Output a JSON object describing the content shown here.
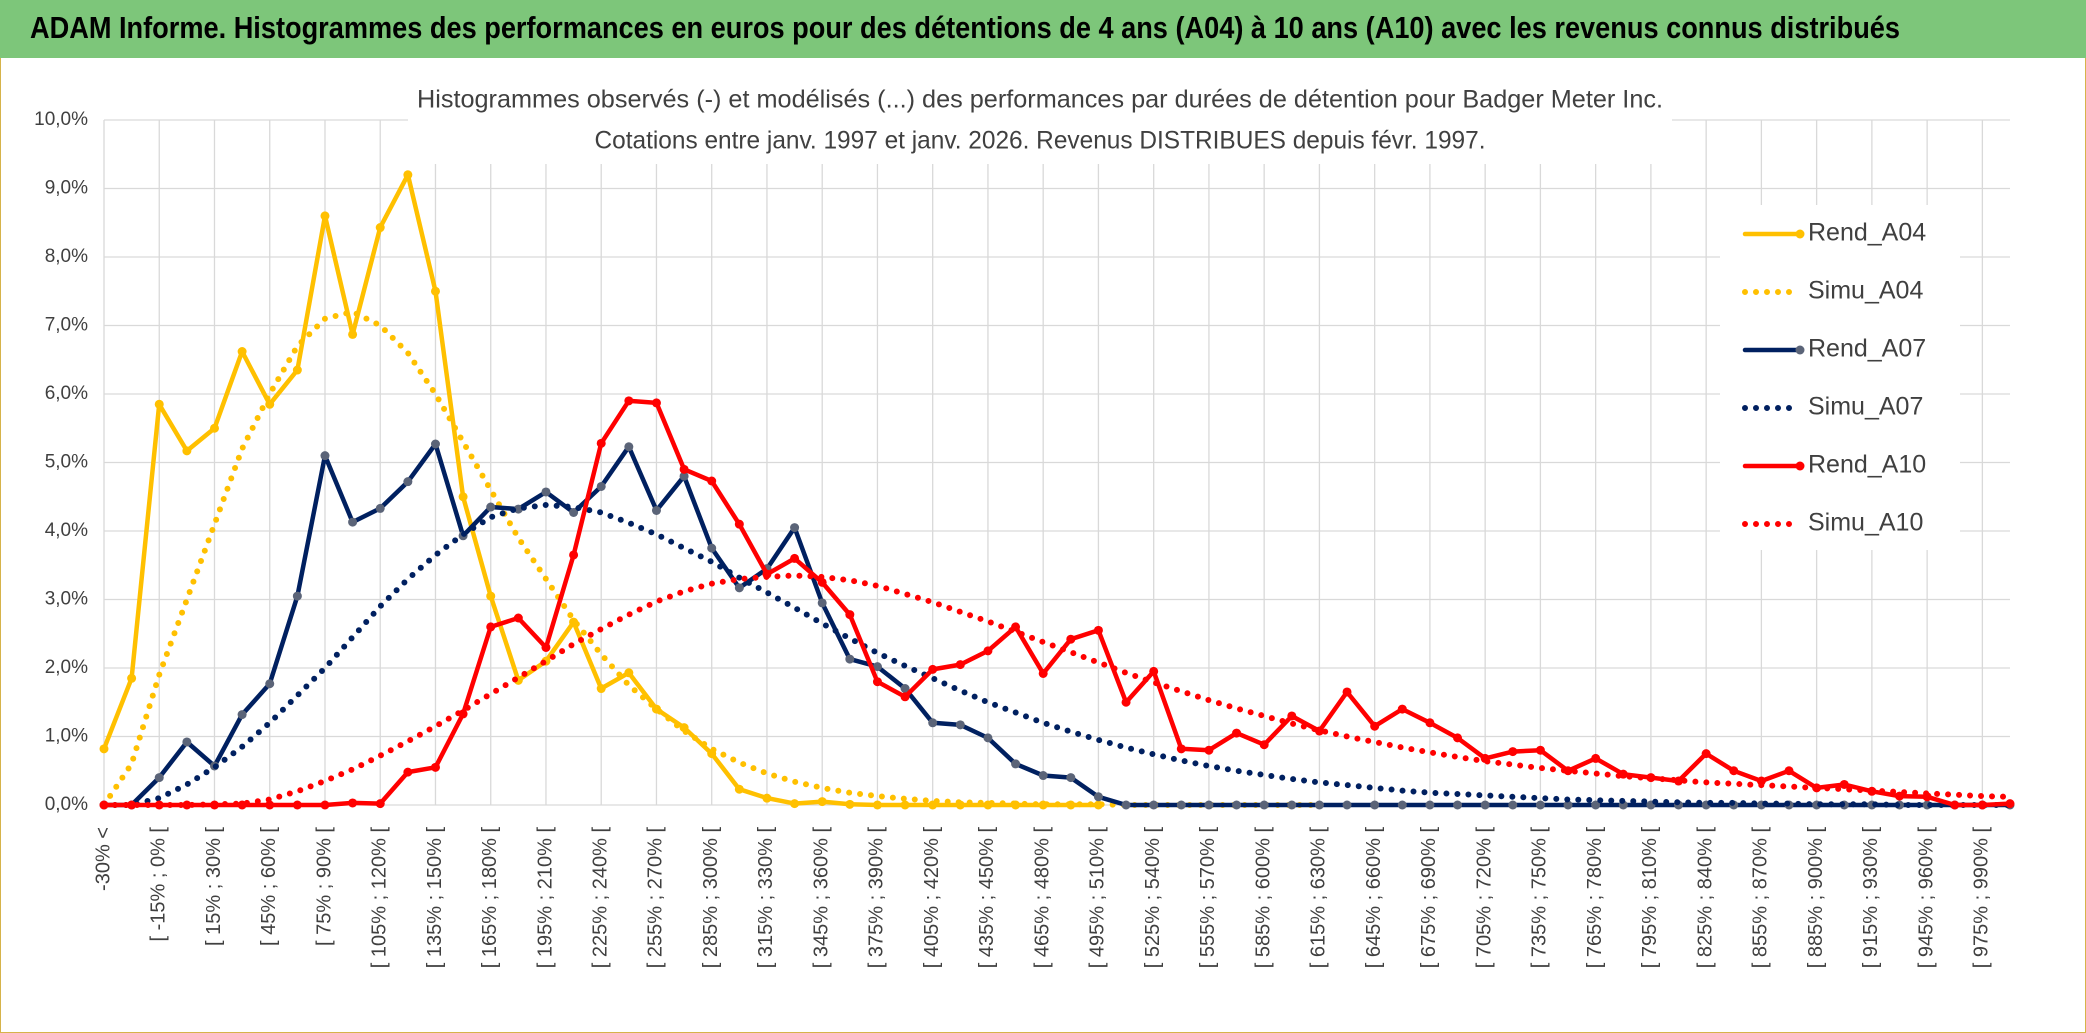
{
  "header": {
    "title": "ADAM Informe. Histogrammes des performances en euros pour des détentions de 4 ans (A04) à 10 ans (A10) avec les revenus connus distribués"
  },
  "chart_data": {
    "type": "line",
    "title": "Histogrammes observés (-) et modélisés (...) des performances par durées de détention pour Badger Meter Inc.",
    "subtitle": "Cotations entre janv. 1997 et janv. 2026. Revenus DISTRIBUES depuis févr. 1997.",
    "categories": [
      "-30% <",
      null,
      "[ -15% ; 0% [",
      null,
      "[ 15% ; 30% [",
      null,
      "[ 45% ; 60% [",
      null,
      "[ 75% ; 90% [",
      null,
      "[ 105% ; 120% [",
      null,
      "[ 135% ; 150% [",
      null,
      "[ 165% ; 180% [",
      null,
      "[ 195% ; 210% [",
      null,
      "[ 225% ; 240% [",
      null,
      "[ 255% ; 270% [",
      null,
      "[ 285% ; 300% [",
      null,
      "[ 315% ; 330% [",
      null,
      "[ 345% ; 360% [",
      null,
      "[ 375% ; 390% [",
      null,
      "[ 405% ; 420% [",
      null,
      "[ 435% ; 450% [",
      null,
      "[ 465% ; 480% [",
      null,
      "[ 495% ; 510% [",
      null,
      "[ 525% ; 540% [",
      null,
      "[ 555% ; 570% [",
      null,
      "[ 585% ; 600% [",
      null,
      "[ 615% ; 630% [",
      null,
      "[ 645% ; 660% [",
      null,
      "[ 675% ; 690% [",
      null,
      "[ 705% ; 720% [",
      null,
      "[ 735% ; 750% [",
      null,
      "[ 765% ; 780% [",
      null,
      "[ 795% ; 810% [",
      null,
      "[ 825% ; 840% [",
      null,
      "[ 855% ; 870% [",
      null,
      "[ 885% ; 900% [",
      null,
      "[ 915% ; 930% [",
      null,
      "[ 945% ; 960% [",
      null,
      "[ 975% ; 990% [",
      null
    ],
    "series": [
      {
        "name": "Rend_A04",
        "color": "#ffc000",
        "line_style": "solid",
        "marker": true,
        "marker_color": "#ffc000",
        "values": [
          0.82,
          1.85,
          5.85,
          5.17,
          5.5,
          6.62,
          5.85,
          6.35,
          8.6,
          6.87,
          8.43,
          9.2,
          7.5,
          4.5,
          3.05,
          1.82,
          2.1,
          2.67,
          1.7,
          1.93,
          1.4,
          1.13,
          0.75,
          0.23,
          0.1,
          0.02,
          0.05,
          0.01,
          0,
          0,
          0,
          0,
          0,
          0,
          0,
          0,
          0,
          null,
          null,
          null,
          null,
          null,
          null,
          null,
          null,
          null,
          null,
          null,
          null,
          null,
          null,
          null,
          null,
          null,
          null,
          null,
          null,
          null,
          null,
          null,
          null,
          null,
          null,
          null,
          null,
          null,
          null,
          null,
          null,
          null
        ]
      },
      {
        "name": "Simu_A04",
        "color": "#ffc000",
        "line_style": "dotted",
        "marker": false,
        "values": [
          0,
          0.6,
          1.9,
          3.0,
          4.1,
          5.2,
          6.0,
          6.7,
          7.1,
          7.2,
          7.0,
          6.6,
          6.0,
          5.3,
          4.6,
          3.9,
          3.3,
          2.7,
          2.2,
          1.75,
          1.4,
          1.08,
          0.82,
          0.62,
          0.46,
          0.34,
          0.25,
          0.18,
          0.13,
          0.09,
          0.06,
          0.04,
          0.03,
          0.02,
          0.01,
          0.01,
          0.01,
          0,
          0,
          0,
          0,
          0,
          0,
          0,
          0,
          null,
          null,
          null,
          null,
          null,
          null,
          null,
          null,
          null,
          null,
          null,
          null,
          null,
          null,
          null,
          null,
          null,
          null,
          null,
          null,
          null,
          null,
          null,
          null,
          null
        ]
      },
      {
        "name": "Rend_A07",
        "color": "#002060",
        "line_style": "solid",
        "marker": true,
        "marker_color": "#5b6478",
        "values": [
          0,
          0,
          0.4,
          0.92,
          0.57,
          1.32,
          1.77,
          3.05,
          5.1,
          4.13,
          4.33,
          4.72,
          5.27,
          3.93,
          4.35,
          4.32,
          4.57,
          4.27,
          4.65,
          5.23,
          4.3,
          4.8,
          3.75,
          3.17,
          3.45,
          4.05,
          2.95,
          2.13,
          2.02,
          1.7,
          1.2,
          1.17,
          0.98,
          0.6,
          0.43,
          0.4,
          0.12,
          0,
          0,
          0,
          0,
          0,
          0,
          0,
          0,
          0,
          0,
          0,
          0,
          0,
          0,
          0,
          0,
          0,
          0,
          0,
          0,
          0,
          0,
          0,
          0,
          0,
          0,
          0,
          0,
          0,
          0,
          0,
          0,
          0
        ]
      },
      {
        "name": "Simu_A07",
        "color": "#002060",
        "line_style": "dotted",
        "marker": false,
        "values": [
          0,
          0,
          0.1,
          0.3,
          0.55,
          0.85,
          1.2,
          1.6,
          2.0,
          2.45,
          2.9,
          3.3,
          3.65,
          3.95,
          4.2,
          4.33,
          4.38,
          4.35,
          4.27,
          4.12,
          3.95,
          3.75,
          3.55,
          3.32,
          3.1,
          2.88,
          2.65,
          2.43,
          2.22,
          2.03,
          1.85,
          1.67,
          1.5,
          1.35,
          1.2,
          1.07,
          0.95,
          0.84,
          0.74,
          0.65,
          0.57,
          0.5,
          0.44,
          0.38,
          0.33,
          0.29,
          0.25,
          0.21,
          0.18,
          0.16,
          0.14,
          0.12,
          0.1,
          0.08,
          0.07,
          0.06,
          0.05,
          0.04,
          0.03,
          0.03,
          0.02,
          0.02,
          0.01,
          0.01,
          0.01,
          0,
          0,
          0,
          0,
          0
        ]
      },
      {
        "name": "Rend_A10",
        "color": "#ff0000",
        "line_style": "solid",
        "marker": true,
        "marker_color": "#ff0000",
        "values": [
          0,
          0,
          0,
          0,
          0,
          0,
          0,
          0,
          0,
          0.03,
          0.02,
          0.48,
          0.55,
          1.33,
          2.6,
          2.73,
          2.3,
          3.65,
          5.28,
          5.9,
          5.87,
          4.9,
          4.73,
          4.1,
          3.37,
          3.6,
          3.25,
          2.78,
          1.8,
          1.58,
          1.98,
          2.05,
          2.25,
          2.6,
          1.92,
          2.42,
          2.55,
          1.5,
          1.95,
          0.82,
          0.8,
          1.05,
          0.88,
          1.3,
          1.08,
          1.65,
          1.15,
          1.4,
          1.2,
          0.98,
          0.68,
          0.78,
          0.8,
          0.5,
          0.68,
          0.45,
          0.4,
          0.35,
          0.75,
          0.5,
          0.35,
          0.5,
          0.25,
          0.3,
          0.2,
          0.13,
          0.12,
          0,
          0,
          0.02
        ]
      },
      {
        "name": "Simu_A10",
        "color": "#ff0000",
        "line_style": "dotted",
        "marker": false,
        "values": [
          0,
          0,
          0,
          0,
          0.01,
          0.02,
          0.08,
          0.2,
          0.35,
          0.52,
          0.72,
          0.93,
          1.15,
          1.38,
          1.62,
          1.86,
          2.1,
          2.35,
          2.57,
          2.78,
          2.97,
          3.12,
          3.23,
          3.3,
          3.33,
          3.35,
          3.33,
          3.28,
          3.2,
          3.08,
          2.96,
          2.82,
          2.68,
          2.53,
          2.38,
          2.23,
          2.08,
          1.93,
          1.79,
          1.66,
          1.53,
          1.41,
          1.3,
          1.19,
          1.09,
          1.0,
          0.92,
          0.84,
          0.77,
          0.7,
          0.64,
          0.59,
          0.54,
          0.5,
          0.46,
          0.42,
          0.39,
          0.36,
          0.33,
          0.31,
          0.29,
          0.27,
          0.25,
          0.23,
          0.21,
          0.19,
          0.17,
          0.15,
          0.13,
          0.12
        ]
      }
    ],
    "ylim": [
      0,
      10
    ],
    "yticks": [
      {
        "value": 0,
        "label": "0,0%"
      },
      {
        "value": 1,
        "label": "1,0%"
      },
      {
        "value": 2,
        "label": "2,0%"
      },
      {
        "value": 3,
        "label": "3,0%"
      },
      {
        "value": 4,
        "label": "4,0%"
      },
      {
        "value": 5,
        "label": "5,0%"
      },
      {
        "value": 6,
        "label": "6,0%"
      },
      {
        "value": 7,
        "label": "7,0%"
      },
      {
        "value": 8,
        "label": "8,0%"
      },
      {
        "value": 9,
        "label": "9,0%"
      },
      {
        "value": 10,
        "label": "10,0%"
      }
    ],
    "grid": true,
    "legend": "right"
  }
}
